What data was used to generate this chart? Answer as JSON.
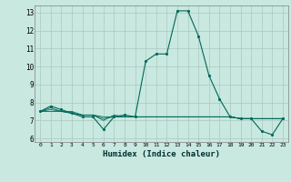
{
  "title": "",
  "xlabel": "Humidex (Indice chaleur)",
  "ylabel": "",
  "background_color": "#c8e8e0",
  "grid_color": "#a8c8c0",
  "line_color": "#006858",
  "xlim": [
    -0.5,
    23.5
  ],
  "ylim": [
    5.8,
    13.4
  ],
  "yticks": [
    6,
    7,
    8,
    9,
    10,
    11,
    12,
    13
  ],
  "xticks": [
    0,
    1,
    2,
    3,
    4,
    5,
    6,
    7,
    8,
    9,
    10,
    11,
    12,
    13,
    14,
    15,
    16,
    17,
    18,
    19,
    20,
    21,
    22,
    23
  ],
  "series": [
    [
      7.5,
      7.8,
      7.6,
      7.4,
      7.2,
      7.2,
      6.5,
      7.2,
      7.3,
      7.2,
      10.3,
      10.7,
      10.7,
      13.1,
      13.1,
      11.7,
      9.5,
      8.2,
      7.2,
      7.1,
      7.1,
      6.4,
      6.2,
      7.1
    ],
    [
      7.5,
      7.7,
      7.5,
      7.5,
      7.3,
      7.3,
      7.0,
      7.3,
      7.2,
      7.2,
      7.2,
      7.2,
      7.2,
      7.2,
      7.2,
      7.2,
      7.2,
      7.2,
      7.2,
      7.1,
      7.1,
      7.1,
      7.1,
      7.1
    ],
    [
      7.5,
      7.6,
      7.5,
      7.4,
      7.3,
      7.3,
      7.1,
      7.2,
      7.2,
      7.2,
      7.2,
      7.2,
      7.2,
      7.2,
      7.2,
      7.2,
      7.2,
      7.2,
      7.2,
      7.1,
      7.1,
      7.1,
      7.1,
      7.1
    ],
    [
      7.5,
      7.5,
      7.5,
      7.4,
      7.3,
      7.3,
      7.2,
      7.2,
      7.2,
      7.2,
      7.2,
      7.2,
      7.2,
      7.2,
      7.2,
      7.2,
      7.2,
      7.2,
      7.2,
      7.1,
      7.1,
      7.1,
      7.1,
      7.1
    ]
  ]
}
